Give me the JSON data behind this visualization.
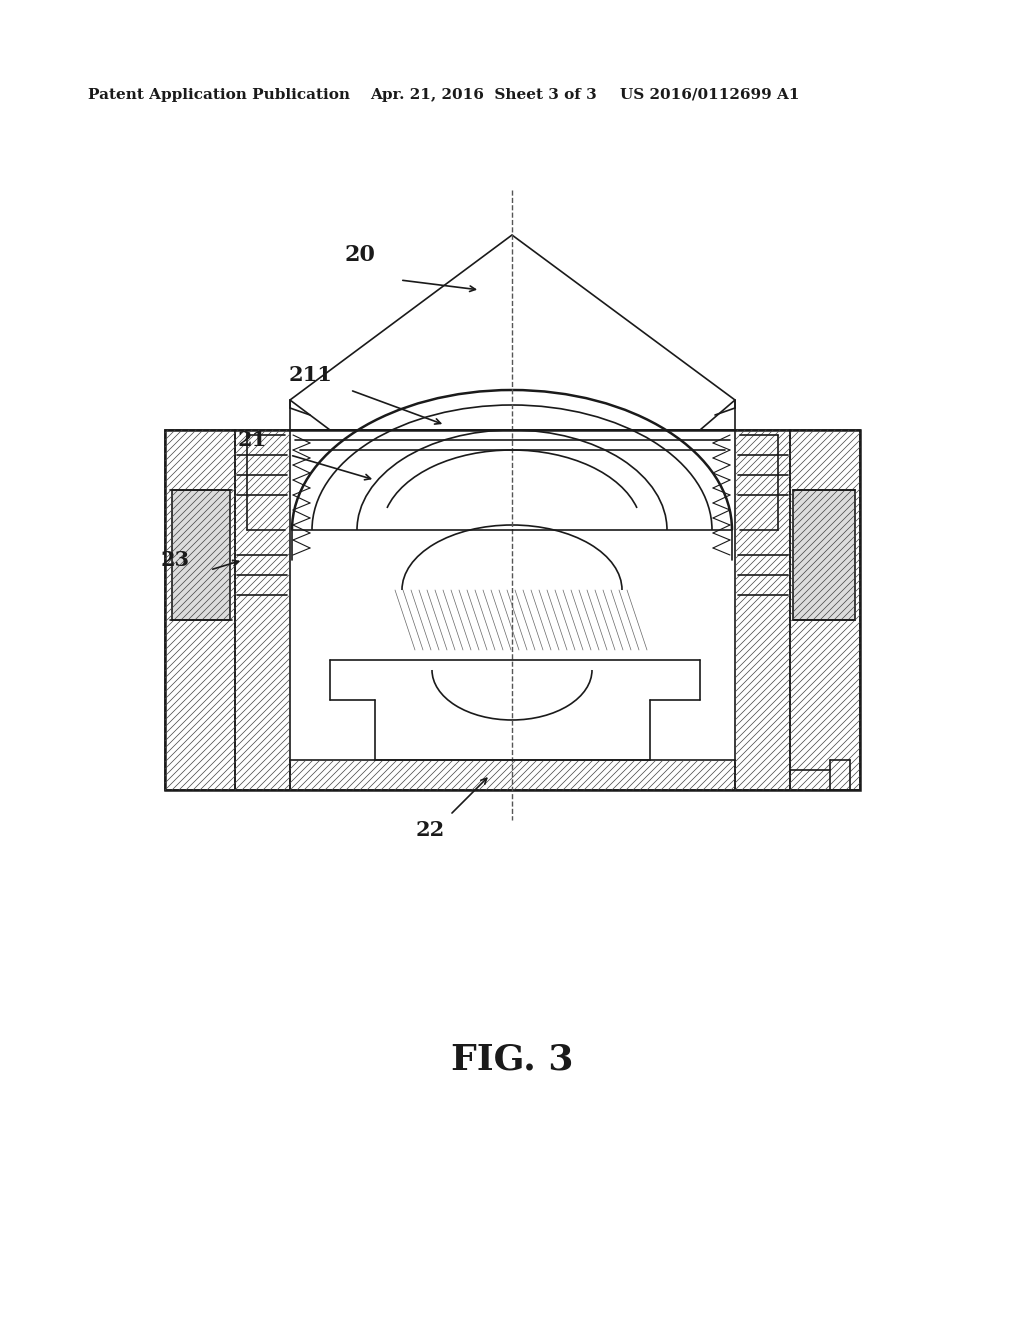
{
  "background_color": "#ffffff",
  "header_left": "Patent Application Publication",
  "header_mid": "Apr. 21, 2016  Sheet 3 of 3",
  "header_right": "US 2016/0112699 A1",
  "fig_label": "FIG. 3",
  "label_20": "20",
  "label_21": "21",
  "label_211": "211",
  "label_22": "22",
  "label_23": "23",
  "line_color": "#1a1a1a",
  "hatch_color": "#333333"
}
